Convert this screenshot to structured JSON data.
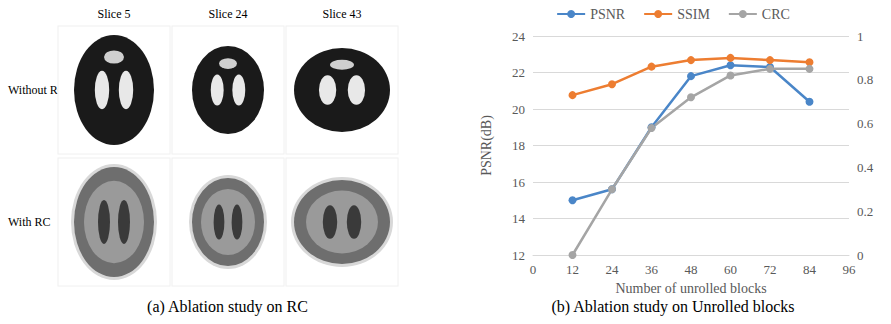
{
  "panel_a": {
    "caption": "(a) Ablation study on RC",
    "columns": [
      "Slice 5",
      "Slice 24",
      "Slice 43"
    ],
    "rows": [
      "Without RC",
      "With RC"
    ]
  },
  "chart_data": {
    "type": "line",
    "caption": "(b) Ablation study on Unrolled blocks",
    "x_label": "Number of unrolled blocks",
    "y_label": "PSNR(dB)",
    "x": [
      12,
      24,
      36,
      48,
      60,
      72,
      84
    ],
    "series": [
      {
        "name": "PSNR",
        "color": "#4a86c8",
        "values": [
          15.0,
          15.6,
          19.0,
          21.8,
          22.4,
          22.3,
          20.4
        ]
      },
      {
        "name": "SSIM",
        "color": "#ed7d31",
        "axis": "y2",
        "values": [
          0.73,
          0.78,
          0.86,
          0.89,
          0.9,
          0.89,
          0.88
        ]
      },
      {
        "name": "CRC",
        "color": "#a5a5a5",
        "axis": "y2",
        "values": [
          0,
          0.3,
          0.58,
          0.72,
          0.82,
          0.85,
          0.85
        ]
      }
    ],
    "xlim": [
      0,
      96
    ],
    "xticks": [
      0,
      12,
      24,
      36,
      48,
      60,
      72,
      84,
      96
    ],
    "ylim": [
      12,
      24
    ],
    "yticks": [
      12,
      14,
      16,
      18,
      20,
      22,
      24
    ],
    "y2lim": [
      0,
      1
    ],
    "y2ticks": [
      0,
      0.2,
      0.4,
      0.6,
      0.8,
      1
    ],
    "grid": true,
    "legend": "top",
    "marker": "circle"
  }
}
